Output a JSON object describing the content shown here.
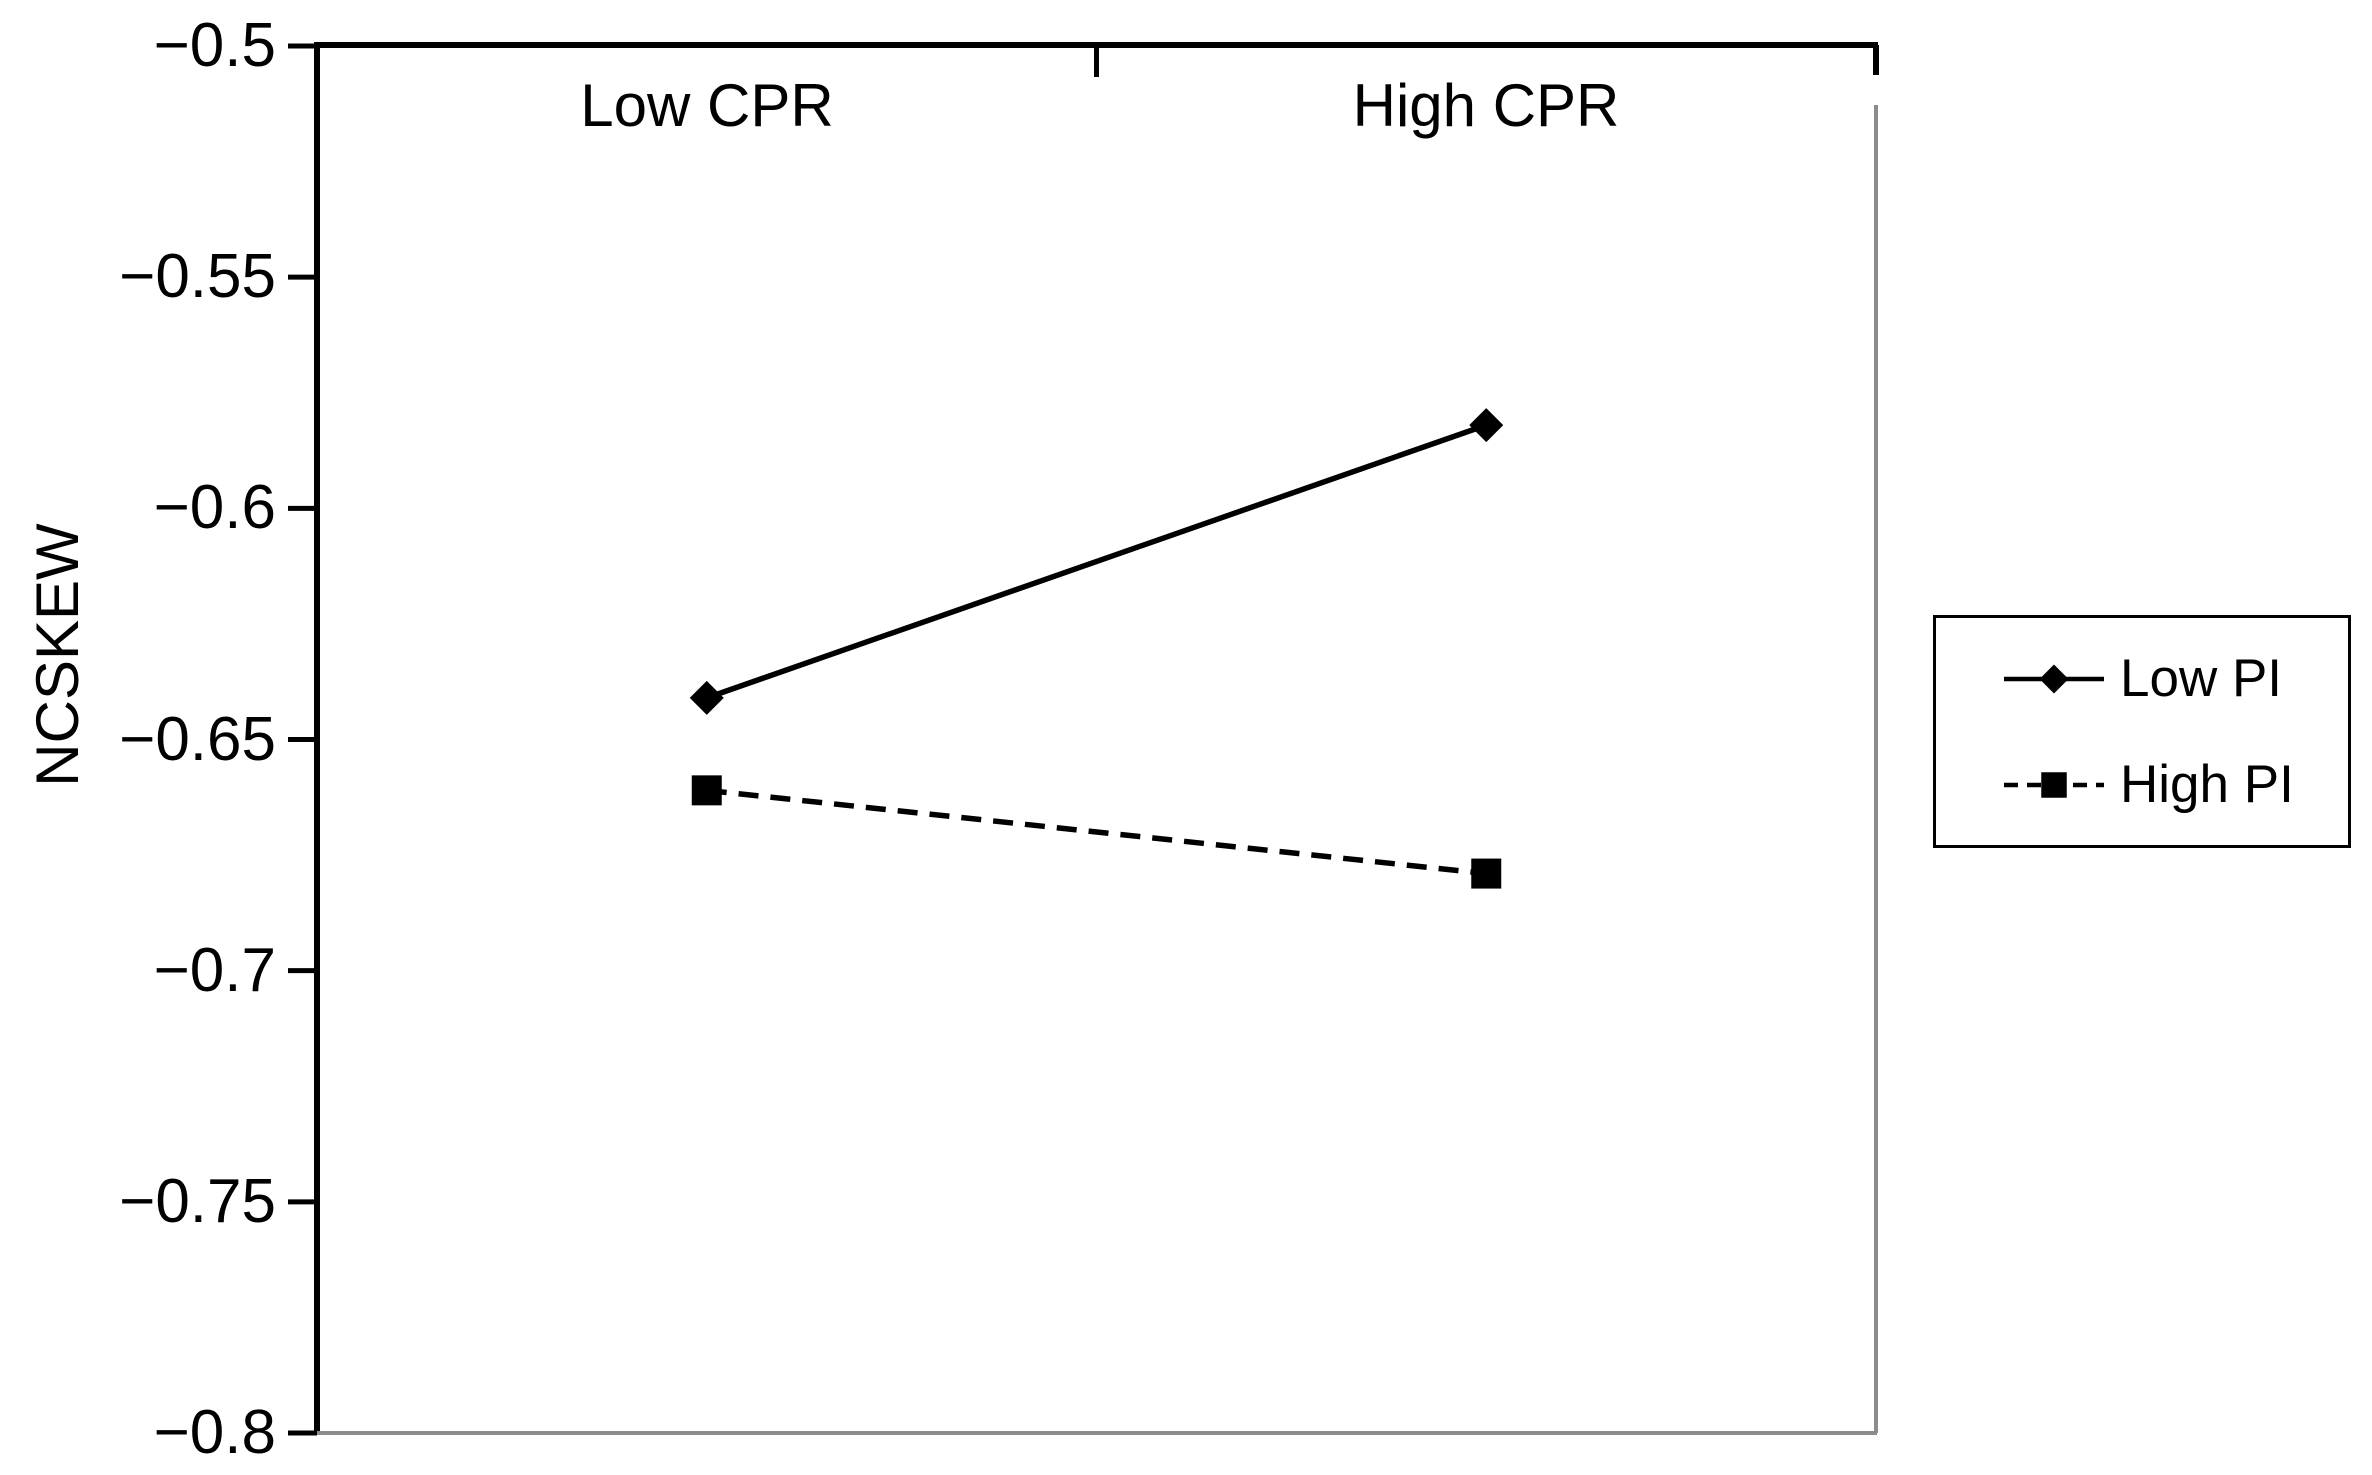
{
  "figure": {
    "background_color": "#ffffff",
    "text_color": "#000000",
    "axis_color": "#000000",
    "frame_shadow_color": "#8c8c8c"
  },
  "chart_data": {
    "type": "line",
    "title": "",
    "xlabel": "",
    "ylabel": "NCSKEW",
    "categories": [
      "Low CPR",
      "High CPR"
    ],
    "series": [
      {
        "name": "Low PI",
        "values": [
          -0.641,
          -0.582
        ],
        "marker": "diamond",
        "line_style": "solid",
        "color": "#000000"
      },
      {
        "name": "High PI",
        "values": [
          -0.661,
          -0.679
        ],
        "marker": "square",
        "line_style": "dashed",
        "color": "#000000"
      }
    ],
    "ylim": [
      -0.8,
      -0.5
    ],
    "yticks": [
      -0.5,
      -0.55,
      -0.6,
      -0.65,
      -0.7,
      -0.75,
      -0.8
    ],
    "ytick_labels": [
      "−0.5",
      "−0.55",
      "−0.6",
      "−0.65",
      "−0.7",
      "−0.75",
      "−0.8"
    ],
    "grid": false,
    "legend_position": "right-outside",
    "category_label_position": "top-inside"
  }
}
